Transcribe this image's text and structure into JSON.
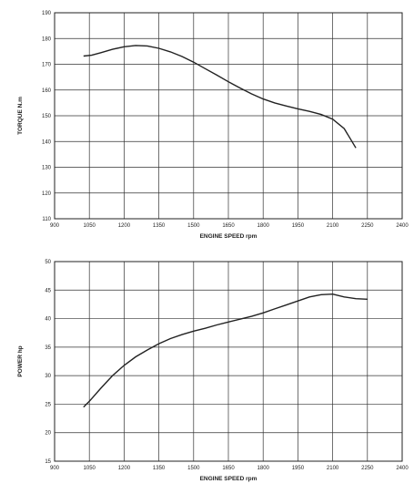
{
  "chart_data": [
    {
      "type": "line",
      "title": "",
      "xlabel": "ENGINE SPEED rpm",
      "ylabel": "TORQUE N.m",
      "xlim": [
        900,
        2400
      ],
      "ylim": [
        110,
        190
      ],
      "grid": true,
      "xticks": [
        "900",
        "1050",
        "1200",
        "1350",
        "1500",
        "1650",
        "1800",
        "1950",
        "2100",
        "2250",
        "2400"
      ],
      "yticks": [
        "110",
        "120",
        "130",
        "140",
        "150",
        "160",
        "170",
        "180",
        "190"
      ],
      "series": [
        {
          "x": [
            1025,
            1060,
            1100,
            1150,
            1200,
            1250,
            1300,
            1350,
            1400,
            1450,
            1500,
            1550,
            1600,
            1650,
            1700,
            1750,
            1800,
            1850,
            1900,
            1950,
            2000,
            2050,
            2100,
            2150,
            2200
          ],
          "values": [
            173.2,
            173.5,
            174.5,
            175.8,
            176.8,
            177.3,
            177.1,
            176.2,
            174.8,
            173.0,
            170.8,
            168.3,
            165.8,
            163.2,
            160.8,
            158.5,
            156.5,
            155.0,
            153.8,
            152.7,
            151.7,
            150.5,
            148.7,
            145.0,
            137.5
          ]
        }
      ]
    },
    {
      "type": "line",
      "title": "",
      "xlabel": "ENGINE SPEED rpm",
      "ylabel": "POWER hp",
      "xlim": [
        900,
        2400
      ],
      "ylim": [
        15,
        50
      ],
      "grid": true,
      "xticks": [
        "900",
        "1050",
        "1200",
        "1350",
        "1500",
        "1650",
        "1800",
        "1950",
        "2100",
        "2250",
        "2400"
      ],
      "yticks": [
        "15",
        "20",
        "25",
        "30",
        "35",
        "40",
        "45",
        "50"
      ],
      "series": [
        {
          "x": [
            1025,
            1050,
            1100,
            1150,
            1200,
            1250,
            1300,
            1350,
            1400,
            1450,
            1500,
            1550,
            1600,
            1650,
            1700,
            1750,
            1800,
            1850,
            1900,
            1950,
            2000,
            2050,
            2100,
            2150,
            2200,
            2250
          ],
          "values": [
            24.5,
            25.5,
            27.8,
            30.0,
            31.8,
            33.3,
            34.5,
            35.6,
            36.5,
            37.2,
            37.8,
            38.3,
            38.9,
            39.4,
            39.9,
            40.4,
            41.0,
            41.7,
            42.4,
            43.1,
            43.8,
            44.2,
            44.3,
            43.8,
            43.5,
            43.4
          ]
        }
      ]
    }
  ]
}
